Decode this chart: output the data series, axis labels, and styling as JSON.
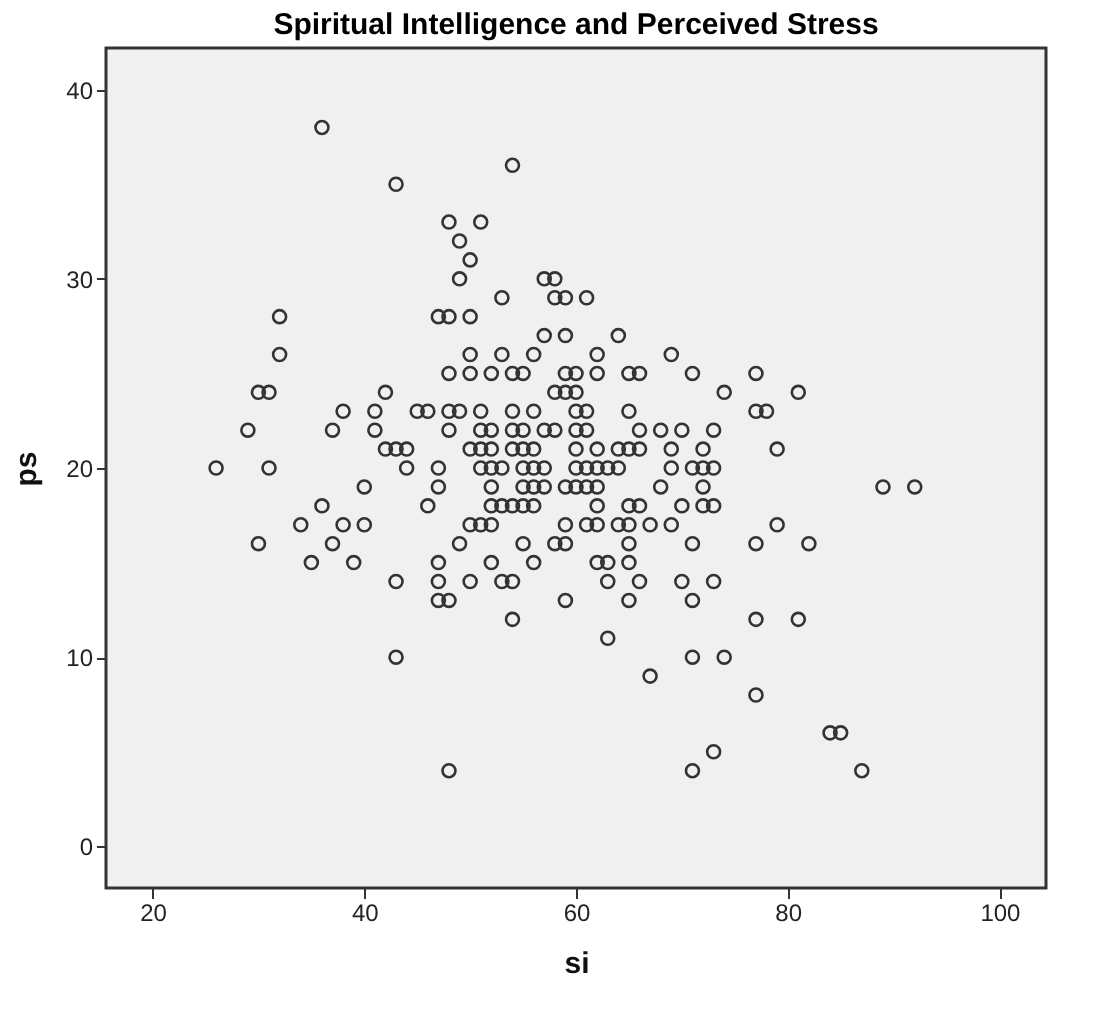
{
  "chart_data": {
    "type": "scatter",
    "title": "Spiritual Intelligence and Perceived Stress",
    "xlabel": "si",
    "ylabel": "ps",
    "xlim": [
      15.6,
      104.4
    ],
    "ylim": [
      -2.2,
      42.2
    ],
    "xticks": [
      20,
      40,
      60,
      80,
      100
    ],
    "yticks": [
      0,
      10,
      20,
      30,
      40
    ],
    "marker": "circle",
    "color": "#333333",
    "x": [
      36,
      54,
      43,
      48,
      51,
      49,
      50,
      49,
      57,
      58,
      53,
      58,
      59,
      61,
      32,
      47,
      48,
      50,
      57,
      59,
      64,
      32,
      50,
      53,
      56,
      62,
      69,
      48,
      50,
      52,
      54,
      55,
      59,
      60,
      62,
      65,
      66,
      71,
      77,
      30,
      31,
      42,
      58,
      59,
      60,
      74,
      81,
      38,
      41,
      45,
      46,
      48,
      49,
      51,
      54,
      56,
      60,
      61,
      65,
      77,
      78,
      29,
      37,
      41,
      48,
      51,
      52,
      54,
      55,
      57,
      58,
      60,
      61,
      66,
      68,
      70,
      73,
      42,
      43,
      44,
      50,
      51,
      52,
      54,
      55,
      56,
      60,
      62,
      64,
      65,
      66,
      69,
      72,
      79,
      26,
      31,
      44,
      47,
      51,
      52,
      53,
      55,
      56,
      57,
      60,
      61,
      62,
      63,
      64,
      69,
      71,
      72,
      73,
      40,
      47,
      52,
      55,
      56,
      57,
      59,
      60,
      61,
      62,
      68,
      72,
      89,
      92,
      36,
      46,
      52,
      53,
      54,
      55,
      56,
      62,
      65,
      66,
      70,
      72,
      73,
      34,
      38,
      40,
      50,
      51,
      52,
      59,
      61,
      62,
      64,
      65,
      67,
      69,
      79,
      30,
      37,
      49,
      55,
      58,
      59,
      65,
      71,
      77,
      82,
      35,
      39,
      47,
      52,
      56,
      62,
      63,
      65,
      43,
      47,
      50,
      53,
      54,
      63,
      66,
      70,
      73,
      47,
      48,
      59,
      65,
      71,
      54,
      77,
      81,
      63,
      43,
      71,
      74,
      67,
      77,
      84,
      85,
      73,
      48,
      71,
      87
    ],
    "values": [
      38,
      36,
      35,
      33,
      33,
      32,
      31,
      30,
      30,
      30,
      29,
      29,
      29,
      29,
      28,
      28,
      28,
      28,
      27,
      27,
      27,
      26,
      26,
      26,
      26,
      26,
      26,
      25,
      25,
      25,
      25,
      25,
      25,
      25,
      25,
      25,
      25,
      25,
      25,
      24,
      24,
      24,
      24,
      24,
      24,
      24,
      24,
      23,
      23,
      23,
      23,
      23,
      23,
      23,
      23,
      23,
      23,
      23,
      23,
      23,
      23,
      22,
      22,
      22,
      22,
      22,
      22,
      22,
      22,
      22,
      22,
      22,
      22,
      22,
      22,
      22,
      22,
      21,
      21,
      21,
      21,
      21,
      21,
      21,
      21,
      21,
      21,
      21,
      21,
      21,
      21,
      21,
      21,
      21,
      20,
      20,
      20,
      20,
      20,
      20,
      20,
      20,
      20,
      20,
      20,
      20,
      20,
      20,
      20,
      20,
      20,
      20,
      20,
      19,
      19,
      19,
      19,
      19,
      19,
      19,
      19,
      19,
      19,
      19,
      19,
      19,
      19,
      18,
      18,
      18,
      18,
      18,
      18,
      18,
      18,
      18,
      18,
      18,
      18,
      18,
      17,
      17,
      17,
      17,
      17,
      17,
      17,
      17,
      17,
      17,
      17,
      17,
      17,
      17,
      16,
      16,
      16,
      16,
      16,
      16,
      16,
      16,
      16,
      16,
      15,
      15,
      15,
      15,
      15,
      15,
      15,
      15,
      14,
      14,
      14,
      14,
      14,
      14,
      14,
      14,
      14,
      13,
      13,
      13,
      13,
      13,
      12,
      12,
      12,
      11,
      10,
      10,
      10,
      9,
      8,
      6,
      6,
      5,
      4,
      4,
      4
    ]
  }
}
